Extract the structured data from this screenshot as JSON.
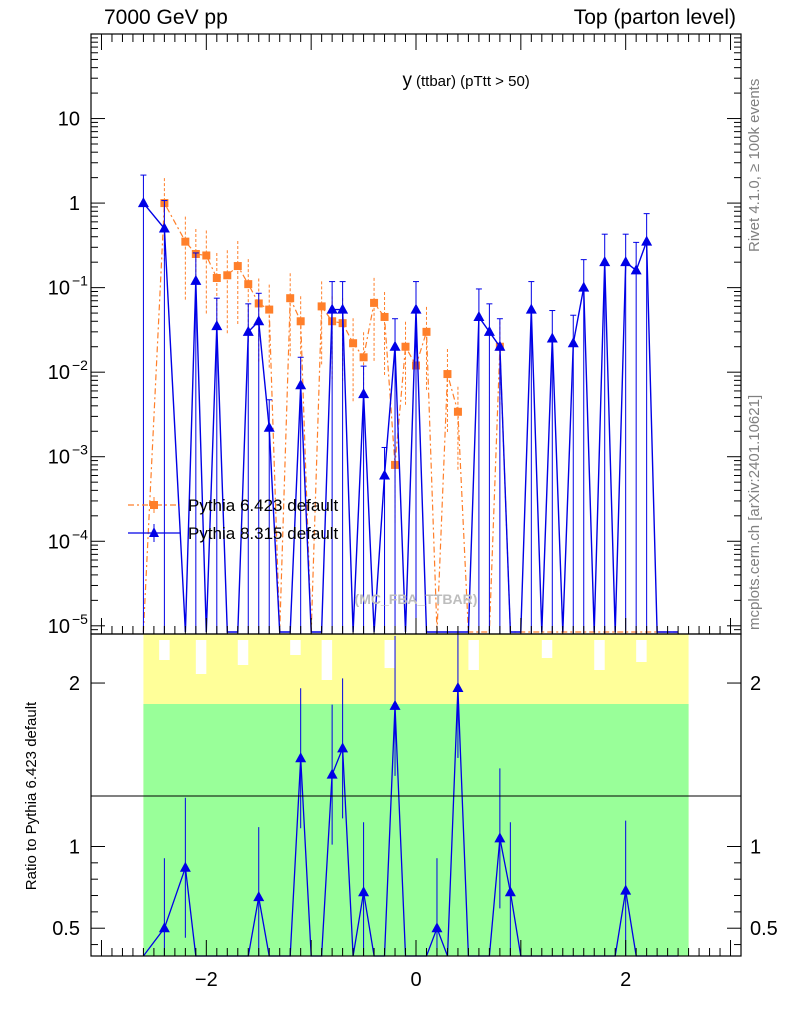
{
  "header": {
    "left": "7000 GeV pp",
    "right": "Top (parton level)"
  },
  "side_labels": {
    "rivet": "Rivet 4.1.0, ≥ 100k events",
    "mcplots": "mcplots.cern.ch [arXiv:2401.10621]"
  },
  "chart_data": {
    "type": "line",
    "title": "y (ttbar) (pTtt > 50)",
    "title_main": "y",
    "title_sub": "(ttbar)  (pTtt > 50)",
    "watermark": "(MC_FBA_TTBAR)",
    "xlabel": "",
    "ylabel": "",
    "ratio_ylabel": "Ratio to Pythia 6.423 default",
    "xlim": [
      -3.1,
      3.1
    ],
    "ylim_log": [
      8e-06,
      100
    ],
    "ratio_ylim": [
      0.33,
      2.3
    ],
    "x_ticks": [
      -2,
      0,
      2
    ],
    "x_tick_labels": [
      "−2",
      "0",
      "2"
    ],
    "y_ticks": [
      1e-05,
      0.0001,
      0.001,
      0.01,
      0.1,
      1,
      10
    ],
    "y_tick_labels": [
      {
        "base": "10",
        "exp": "−5"
      },
      {
        "base": "10",
        "exp": "−4"
      },
      {
        "base": "10",
        "exp": "−3"
      },
      {
        "base": "10",
        "exp": "−2"
      },
      {
        "base": "10",
        "exp": "−1"
      },
      {
        "base": "1",
        "exp": ""
      },
      {
        "base": "10",
        "exp": ""
      }
    ],
    "ratio_ticks": [
      0.5,
      1,
      2
    ],
    "ratio_tick_labels": [
      "0.5",
      "1",
      "2"
    ],
    "legend_position": "middle-left",
    "x": [
      -2.6,
      -2.4,
      -2.2,
      -2.1,
      -2.0,
      -1.9,
      -1.8,
      -1.7,
      -1.6,
      -1.5,
      -1.4,
      -1.3,
      -1.2,
      -1.1,
      -1.0,
      -0.9,
      -0.8,
      -0.7,
      -0.6,
      -0.5,
      -0.4,
      -0.3,
      -0.2,
      -0.1,
      0.0,
      0.1,
      0.2,
      0.3,
      0.4,
      0.5,
      0.6,
      0.7,
      0.8,
      0.9,
      1.0,
      1.1,
      1.2,
      1.3,
      1.4,
      1.5,
      1.6,
      1.7,
      1.8,
      1.9,
      2.0,
      2.1,
      2.2,
      2.3,
      2.4,
      2.5
    ],
    "series": [
      {
        "name": "Pythia 6.423 default",
        "color": "#ff7f2a",
        "marker": "square",
        "values": [
          null,
          1.0,
          0.35,
          0.25,
          0.24,
          0.13,
          0.14,
          0.18,
          0.11,
          0.065,
          0.055,
          null,
          0.075,
          0.04,
          null,
          0.06,
          0.04,
          0.038,
          0.022,
          0.015,
          0.066,
          0.045,
          0.0008,
          0.02,
          0.012,
          0.03,
          null,
          0.0095,
          0.0034,
          null,
          null,
          null,
          0.02,
          null,
          null,
          null,
          null,
          null,
          null,
          null,
          null,
          null,
          null,
          null,
          null,
          null,
          null,
          null,
          null,
          null
        ]
      },
      {
        "name": "Pythia 8.315 default",
        "color": "#0000e6",
        "marker": "triangle",
        "values": [
          1.0,
          0.5,
          null,
          0.12,
          null,
          0.035,
          null,
          null,
          0.03,
          0.04,
          0.0022,
          null,
          null,
          0.007,
          null,
          null,
          0.055,
          0.055,
          null,
          0.0055,
          null,
          0.0006,
          0.02,
          null,
          0.055,
          null,
          null,
          null,
          null,
          null,
          0.045,
          0.03,
          0.02,
          null,
          null,
          0.055,
          null,
          0.025,
          null,
          0.022,
          0.1,
          null,
          0.2,
          null,
          0.2,
          0.16,
          0.35,
          null,
          null,
          null
        ]
      }
    ],
    "ratio_values": [
      null,
      0.5,
      0.87,
      null,
      null,
      null,
      null,
      null,
      null,
      0.69,
      null,
      null,
      null,
      1.54,
      null,
      null,
      1.44,
      1.6,
      null,
      0.72,
      null,
      null,
      1.86,
      null,
      null,
      null,
      0.5,
      null,
      1.97,
      null,
      null,
      null,
      1.05,
      0.72,
      null,
      null,
      null,
      null,
      null,
      null,
      null,
      null,
      null,
      null,
      0.73,
      null,
      null,
      null,
      null,
      null
    ]
  }
}
